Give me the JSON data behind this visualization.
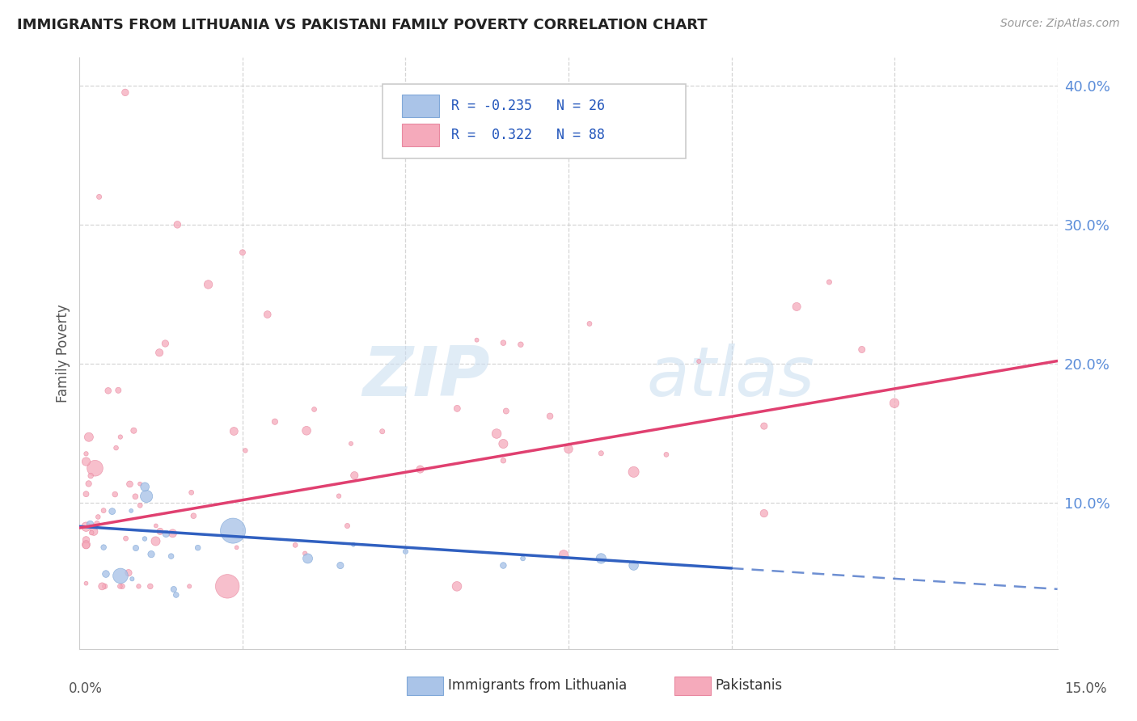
{
  "title": "IMMIGRANTS FROM LITHUANIA VS PAKISTANI FAMILY POVERTY CORRELATION CHART",
  "source": "Source: ZipAtlas.com",
  "ylabel": "Family Poverty",
  "blue_color": "#aac4e8",
  "pink_color": "#f5aabb",
  "blue_line_color": "#3060c0",
  "pink_line_color": "#e04070",
  "xlim": [
    0.0,
    0.15
  ],
  "ylim": [
    -0.005,
    0.42
  ],
  "yticks": [
    0.1,
    0.2,
    0.3,
    0.4
  ],
  "ytick_labels": [
    "10.0%",
    "20.0%",
    "30.0%",
    "40.0%"
  ],
  "watermark_text": "ZIPatlas",
  "legend_blue_r": "-0.235",
  "legend_blue_n": "26",
  "legend_pink_r": "0.322",
  "legend_pink_n": "88"
}
